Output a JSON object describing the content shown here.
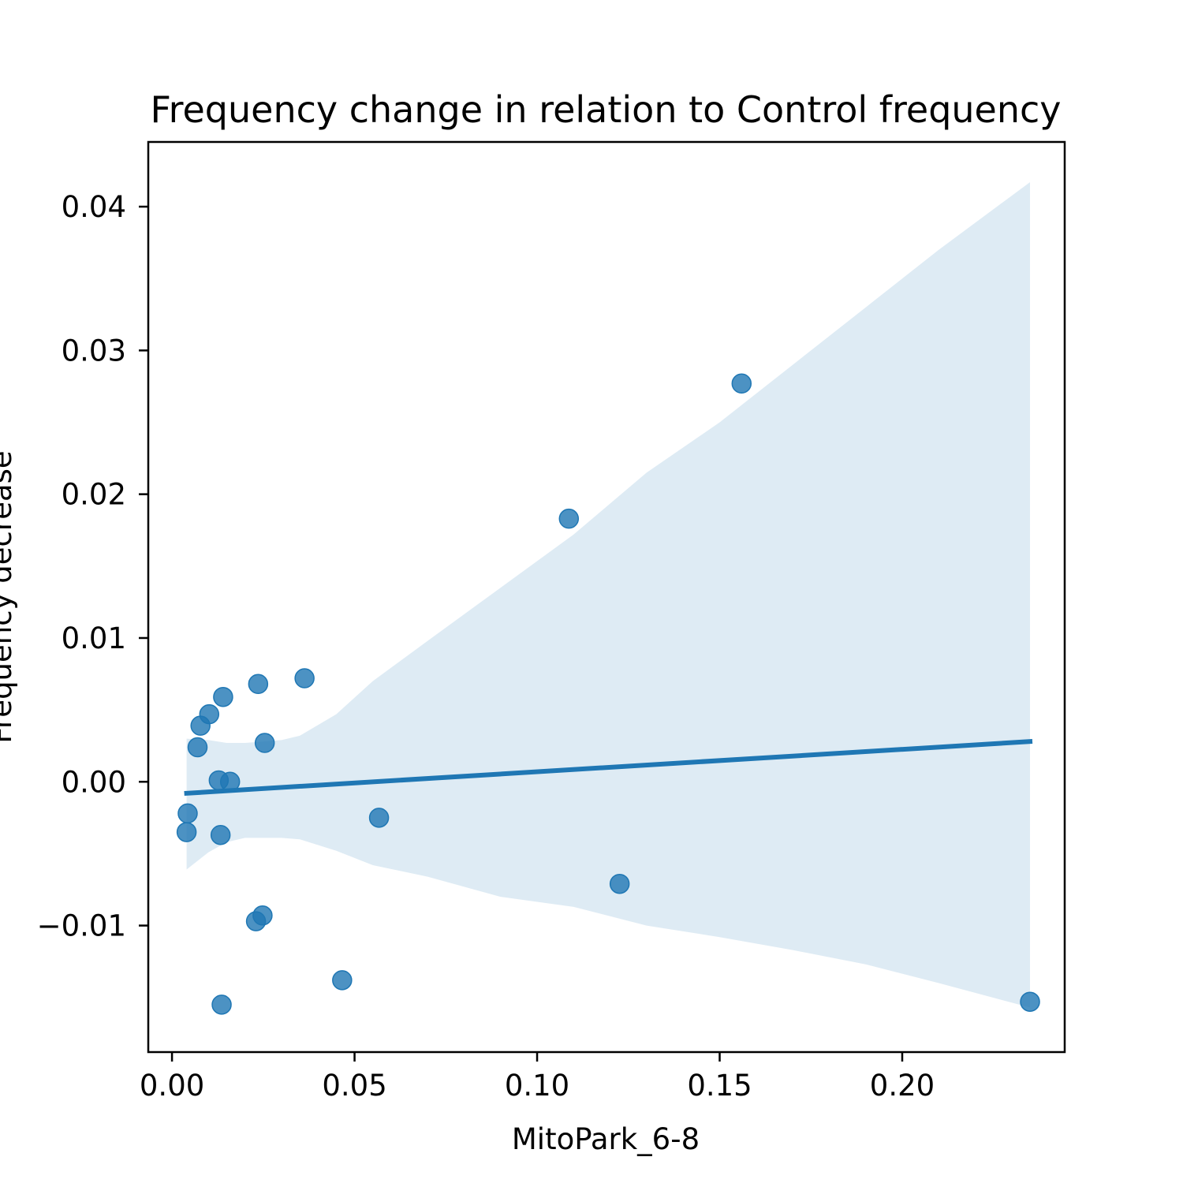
{
  "chart_data": {
    "type": "scatter",
    "title": "Frequency change in relation to Control frequency",
    "xlabel": "MitoPark_6-8",
    "ylabel": "Frequency decrease",
    "xlim": [
      -0.0065,
      0.2445
    ],
    "ylim": [
      -0.0188,
      0.0445
    ],
    "x_ticks": [
      {
        "value": 0.0,
        "label": "0.00"
      },
      {
        "value": 0.05,
        "label": "0.05"
      },
      {
        "value": 0.1,
        "label": "0.10"
      },
      {
        "value": 0.15,
        "label": "0.15"
      },
      {
        "value": 0.2,
        "label": "0.20"
      }
    ],
    "y_ticks": [
      {
        "value": -0.01,
        "label": "−0.01"
      },
      {
        "value": 0.0,
        "label": "0.00"
      },
      {
        "value": 0.01,
        "label": "0.01"
      },
      {
        "value": 0.02,
        "label": "0.02"
      },
      {
        "value": 0.03,
        "label": "0.03"
      },
      {
        "value": 0.04,
        "label": "0.04"
      }
    ],
    "grid": false,
    "colors": {
      "points": "#1f77b4",
      "line": "#1f77b4",
      "band": "#1f77b4"
    },
    "points": [
      {
        "x": 0.004,
        "y": -0.0035
      },
      {
        "x": 0.0043,
        "y": -0.0022
      },
      {
        "x": 0.007,
        "y": 0.0024
      },
      {
        "x": 0.0078,
        "y": 0.0039
      },
      {
        "x": 0.0102,
        "y": 0.0047
      },
      {
        "x": 0.0128,
        "y": 0.0001
      },
      {
        "x": 0.0133,
        "y": -0.0037
      },
      {
        "x": 0.0136,
        "y": -0.0155
      },
      {
        "x": 0.014,
        "y": 0.0059
      },
      {
        "x": 0.0159,
        "y": 0.0
      },
      {
        "x": 0.023,
        "y": -0.0097
      },
      {
        "x": 0.0236,
        "y": 0.0068
      },
      {
        "x": 0.0248,
        "y": -0.0093
      },
      {
        "x": 0.0254,
        "y": 0.0027
      },
      {
        "x": 0.0363,
        "y": 0.0072
      },
      {
        "x": 0.0466,
        "y": -0.0138
      },
      {
        "x": 0.0567,
        "y": -0.0025
      },
      {
        "x": 0.1087,
        "y": 0.0183
      },
      {
        "x": 0.1226,
        "y": -0.0071
      },
      {
        "x": 0.156,
        "y": 0.0277
      },
      {
        "x": 0.235,
        "y": -0.0153
      }
    ],
    "regression_line": [
      {
        "x": 0.004,
        "y": -0.0008
      },
      {
        "x": 0.235,
        "y": 0.0028
      }
    ],
    "confidence_band": {
      "upper": [
        {
          "x": 0.004,
          "y": 0.003
        },
        {
          "x": 0.01,
          "y": 0.0029
        },
        {
          "x": 0.015,
          "y": 0.0027
        },
        {
          "x": 0.02,
          "y": 0.0027
        },
        {
          "x": 0.025,
          "y": 0.0028
        },
        {
          "x": 0.03,
          "y": 0.0029
        },
        {
          "x": 0.035,
          "y": 0.0032
        },
        {
          "x": 0.045,
          "y": 0.0047
        },
        {
          "x": 0.055,
          "y": 0.007
        },
        {
          "x": 0.07,
          "y": 0.0098
        },
        {
          "x": 0.09,
          "y": 0.0135
        },
        {
          "x": 0.11,
          "y": 0.0172
        },
        {
          "x": 0.13,
          "y": 0.0215
        },
        {
          "x": 0.15,
          "y": 0.025
        },
        {
          "x": 0.17,
          "y": 0.029
        },
        {
          "x": 0.19,
          "y": 0.033
        },
        {
          "x": 0.21,
          "y": 0.037
        },
        {
          "x": 0.235,
          "y": 0.0417
        }
      ],
      "lower": [
        {
          "x": 0.004,
          "y": -0.0061
        },
        {
          "x": 0.01,
          "y": -0.0049
        },
        {
          "x": 0.015,
          "y": -0.0042
        },
        {
          "x": 0.02,
          "y": -0.0039
        },
        {
          "x": 0.025,
          "y": -0.0039
        },
        {
          "x": 0.03,
          "y": -0.0039
        },
        {
          "x": 0.035,
          "y": -0.004
        },
        {
          "x": 0.045,
          "y": -0.0048
        },
        {
          "x": 0.055,
          "y": -0.0058
        },
        {
          "x": 0.07,
          "y": -0.0066
        },
        {
          "x": 0.09,
          "y": -0.008
        },
        {
          "x": 0.11,
          "y": -0.0087
        },
        {
          "x": 0.13,
          "y": -0.01
        },
        {
          "x": 0.15,
          "y": -0.0108
        },
        {
          "x": 0.17,
          "y": -0.0117
        },
        {
          "x": 0.19,
          "y": -0.0127
        },
        {
          "x": 0.21,
          "y": -0.014
        },
        {
          "x": 0.235,
          "y": -0.0157
        }
      ]
    }
  }
}
